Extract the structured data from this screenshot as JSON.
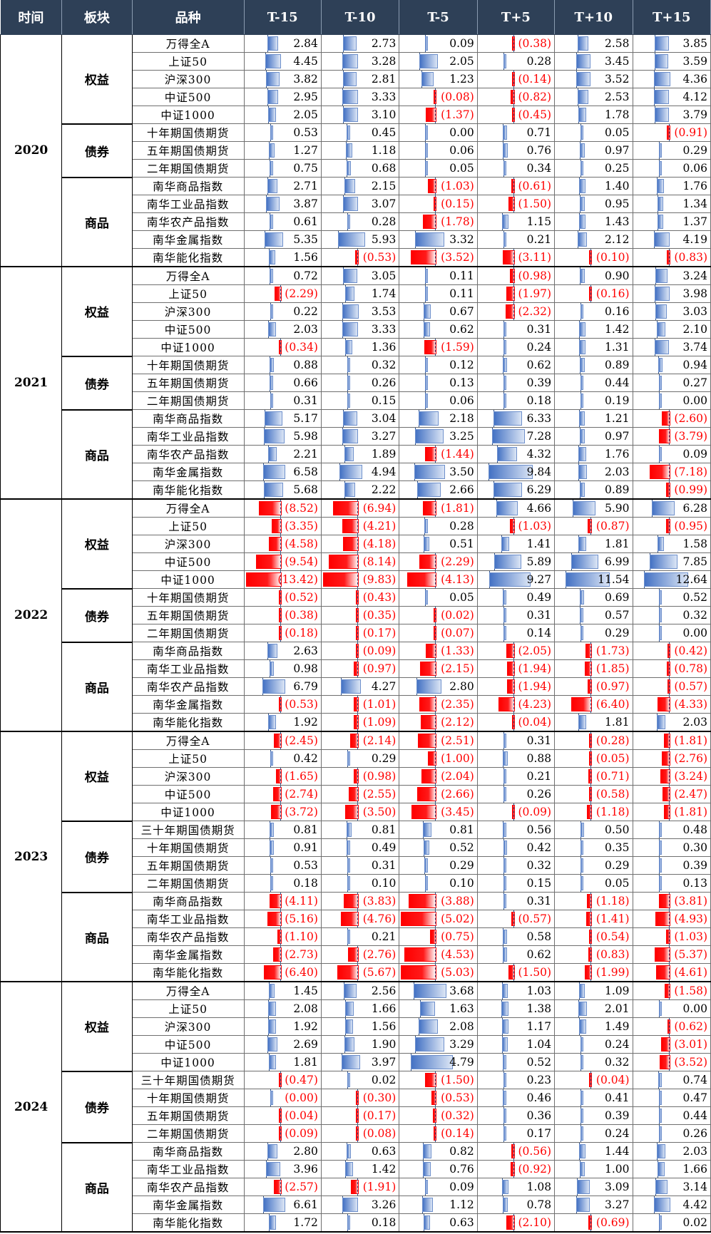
{
  "headers": [
    "时间",
    "板块",
    "品种",
    "T-15",
    "T-10",
    "T-5",
    "T+5",
    "T+10",
    "T+15"
  ],
  "years": [
    {
      "year": "2020",
      "sectors": [
        {
          "name": "权益",
          "rows": [
            {
              "name": "万得全A",
              "values": [
                "2.84",
                "2.73",
                "0.09",
                "(0.38)",
                "2.58",
                "3.85"
              ]
            },
            {
              "name": "上证50",
              "values": [
                "4.45",
                "3.28",
                "2.05",
                "0.28",
                "3.45",
                "3.59"
              ]
            },
            {
              "name": "沪深300",
              "values": [
                "3.82",
                "2.81",
                "1.23",
                "(0.14)",
                "3.52",
                "4.36"
              ]
            },
            {
              "name": "中证500",
              "values": [
                "2.95",
                "3.33",
                "(0.08)",
                "(0.82)",
                "2.53",
                "4.12"
              ]
            },
            {
              "name": "中证1000",
              "values": [
                "2.05",
                "3.10",
                "(1.37)",
                "(0.45)",
                "1.78",
                "3.79"
              ]
            }
          ]
        },
        {
          "name": "债券",
          "rows": [
            {
              "name": "十年期国债期货",
              "values": [
                "0.53",
                "0.45",
                "0.00",
                "0.71",
                "0.05",
                "(0.91)"
              ]
            },
            {
              "name": "五年期国债期货",
              "values": [
                "1.27",
                "1.18",
                "0.06",
                "0.76",
                "0.97",
                "0.29"
              ]
            },
            {
              "name": "二年期国债期货",
              "values": [
                "0.75",
                "0.68",
                "0.05",
                "0.34",
                "0.25",
                "0.06"
              ]
            }
          ]
        },
        {
          "name": "商品",
          "rows": [
            {
              "name": "南华商品指数",
              "values": [
                "2.71",
                "2.15",
                "(1.03)",
                "(0.61)",
                "1.40",
                "1.76"
              ]
            },
            {
              "name": "南华工业品指数",
              "values": [
                "3.87",
                "3.07",
                "(0.15)",
                "(1.50)",
                "0.95",
                "1.34"
              ]
            },
            {
              "name": "南华农产品指数",
              "values": [
                "0.61",
                "0.28",
                "(1.78)",
                "1.15",
                "1.43",
                "1.37"
              ]
            },
            {
              "name": "南华金属指数",
              "values": [
                "5.35",
                "5.93",
                "3.32",
                "0.21",
                "2.12",
                "4.19"
              ]
            },
            {
              "name": "南华能化指数",
              "values": [
                "1.56",
                "(0.53)",
                "(3.52)",
                "(3.11)",
                "(0.10)",
                "(0.83)"
              ]
            }
          ]
        }
      ]
    },
    {
      "year": "2021",
      "sectors": [
        {
          "name": "权益",
          "rows": [
            {
              "name": "万得全A",
              "values": [
                "0.72",
                "3.05",
                "0.11",
                "(0.98)",
                "0.90",
                "3.24"
              ]
            },
            {
              "name": "上证50",
              "values": [
                "(2.29)",
                "1.74",
                "0.11",
                "(1.97)",
                "(0.16)",
                "3.98"
              ]
            },
            {
              "name": "沪深300",
              "values": [
                "0.22",
                "3.53",
                "0.67",
                "(2.32)",
                "0.16",
                "3.03"
              ]
            },
            {
              "name": "中证500",
              "values": [
                "2.03",
                "3.33",
                "0.62",
                "0.31",
                "1.42",
                "2.10"
              ]
            },
            {
              "name": "中证1000",
              "values": [
                "(0.34)",
                "1.36",
                "(1.59)",
                "0.24",
                "1.31",
                "3.74"
              ]
            }
          ]
        },
        {
          "name": "债券",
          "rows": [
            {
              "name": "十年期国债期货",
              "values": [
                "0.88",
                "0.32",
                "0.12",
                "0.62",
                "0.89",
                "0.94"
              ]
            },
            {
              "name": "五年期国债期货",
              "values": [
                "0.66",
                "0.26",
                "0.13",
                "0.39",
                "0.44",
                "0.27"
              ]
            },
            {
              "name": "二年期国债期货",
              "values": [
                "0.31",
                "0.15",
                "0.06",
                "0.18",
                "0.19",
                "0.00"
              ]
            }
          ]
        },
        {
          "name": "商品",
          "rows": [
            {
              "name": "南华商品指数",
              "values": [
                "5.17",
                "3.04",
                "2.18",
                "6.33",
                "1.21",
                "(2.60)"
              ]
            },
            {
              "name": "南华工业品指数",
              "values": [
                "5.98",
                "3.27",
                "3.25",
                "7.28",
                "0.97",
                "(3.79)"
              ]
            },
            {
              "name": "南华农产品指数",
              "values": [
                "2.21",
                "1.89",
                "(1.44)",
                "4.32",
                "1.76",
                "0.09"
              ]
            },
            {
              "name": "南华金属指数",
              "values": [
                "6.58",
                "4.94",
                "3.50",
                "9.84",
                "2.03",
                "(7.18)"
              ]
            },
            {
              "name": "南华能化指数",
              "values": [
                "5.68",
                "2.22",
                "2.66",
                "6.29",
                "0.89",
                "(0.99)"
              ]
            }
          ]
        }
      ]
    },
    {
      "year": "2022",
      "sectors": [
        {
          "name": "权益",
          "rows": [
            {
              "name": "万得全A",
              "values": [
                "(8.52)",
                "(6.94)",
                "(1.81)",
                "4.66",
                "5.90",
                "6.28"
              ]
            },
            {
              "name": "上证50",
              "values": [
                "(3.35)",
                "(4.21)",
                "0.28",
                "(1.03)",
                "(0.87)",
                "(0.95)"
              ]
            },
            {
              "name": "沪深300",
              "values": [
                "(4.58)",
                "(4.18)",
                "0.51",
                "1.41",
                "1.81",
                "1.58"
              ]
            },
            {
              "name": "中证500",
              "values": [
                "(9.54)",
                "(8.14)",
                "(2.29)",
                "5.89",
                "6.99",
                "7.85"
              ]
            },
            {
              "name": "中证1000",
              "values": [
                "(13.42)",
                "(9.83)",
                "(4.13)",
                "9.27",
                "11.54",
                "12.64"
              ]
            }
          ]
        },
        {
          "name": "债券",
          "rows": [
            {
              "name": "十年期国债期货",
              "values": [
                "(0.52)",
                "(0.43)",
                "0.05",
                "0.49",
                "0.69",
                "0.52"
              ]
            },
            {
              "name": "五年期国债期货",
              "values": [
                "(0.38)",
                "(0.35)",
                "(0.02)",
                "0.31",
                "0.57",
                "0.32"
              ]
            },
            {
              "name": "二年期国债期货",
              "values": [
                "(0.18)",
                "(0.17)",
                "(0.07)",
                "0.14",
                "0.29",
                "0.00"
              ]
            }
          ]
        },
        {
          "name": "商品",
          "rows": [
            {
              "name": "南华商品指数",
              "values": [
                "2.63",
                "(0.09)",
                "(1.33)",
                "(2.05)",
                "(1.73)",
                "(0.42)"
              ]
            },
            {
              "name": "南华工业品指数",
              "values": [
                "0.98",
                "(0.97)",
                "(2.15)",
                "(1.94)",
                "(1.85)",
                "(0.78)"
              ]
            },
            {
              "name": "南华农产品指数",
              "values": [
                "6.79",
                "4.27",
                "2.80",
                "(1.94)",
                "(0.97)",
                "(0.57)"
              ]
            },
            {
              "name": "南华金属指数",
              "values": [
                "(0.53)",
                "(1.01)",
                "(2.35)",
                "(4.23)",
                "(6.40)",
                "(4.33)"
              ]
            },
            {
              "name": "南华能化指数",
              "values": [
                "1.92",
                "(1.09)",
                "(2.12)",
                "(0.04)",
                "1.81",
                "2.03"
              ]
            }
          ]
        }
      ]
    },
    {
      "year": "2023",
      "sectors": [
        {
          "name": "权益",
          "rows": [
            {
              "name": "万得全A",
              "values": [
                "(2.45)",
                "(2.14)",
                "(2.51)",
                "0.31",
                "(0.28)",
                "(1.81)"
              ]
            },
            {
              "name": "上证50",
              "values": [
                "0.42",
                "0.29",
                "(1.00)",
                "0.88",
                "(0.05)",
                "(2.76)"
              ]
            },
            {
              "name": "沪深300",
              "values": [
                "(1.65)",
                "(0.98)",
                "(2.04)",
                "0.21",
                "(0.71)",
                "(3.24)"
              ]
            },
            {
              "name": "中证500",
              "values": [
                "(2.74)",
                "(2.55)",
                "(2.66)",
                "0.26",
                "(0.58)",
                "(2.47)"
              ]
            },
            {
              "name": "中证1000",
              "values": [
                "(3.72)",
                "(3.50)",
                "(3.45)",
                "(0.09)",
                "(1.18)",
                "(1.81)"
              ]
            }
          ]
        },
        {
          "name": "债券",
          "rows": [
            {
              "name": "三十年期国债期货",
              "values": [
                "0.81",
                "0.81",
                "0.81",
                "0.56",
                "0.50",
                "0.48"
              ]
            },
            {
              "name": "十年期国债期货",
              "values": [
                "0.91",
                "0.49",
                "0.52",
                "0.42",
                "0.35",
                "0.30"
              ]
            },
            {
              "name": "五年期国债期货",
              "values": [
                "0.53",
                "0.31",
                "0.29",
                "0.32",
                "0.29",
                "0.39"
              ]
            },
            {
              "name": "二年期国债期货",
              "values": [
                "0.18",
                "0.10",
                "0.10",
                "0.15",
                "0.05",
                "0.13"
              ]
            }
          ]
        },
        {
          "name": "商品",
          "rows": [
            {
              "name": "南华商品指数",
              "values": [
                "(4.11)",
                "(3.83)",
                "(3.88)",
                "0.31",
                "(1.18)",
                "(3.81)"
              ]
            },
            {
              "name": "南华工业品指数",
              "values": [
                "(5.16)",
                "(4.76)",
                "(5.02)",
                "(0.57)",
                "(1.41)",
                "(4.93)"
              ]
            },
            {
              "name": "南华农产品指数",
              "values": [
                "(1.10)",
                "0.21",
                "(0.75)",
                "0.58",
                "(0.54)",
                "(1.03)"
              ]
            },
            {
              "name": "南华金属指数",
              "values": [
                "(2.73)",
                "(2.76)",
                "(4.53)",
                "0.62",
                "(0.83)",
                "(5.37)"
              ]
            },
            {
              "name": "南华能化指数",
              "values": [
                "(6.40)",
                "(5.67)",
                "(5.03)",
                "(1.50)",
                "(1.99)",
                "(4.61)"
              ]
            }
          ]
        }
      ]
    },
    {
      "year": "2024",
      "sectors": [
        {
          "name": "权益",
          "rows": [
            {
              "name": "万得全A",
              "values": [
                "1.45",
                "2.56",
                "3.68",
                "1.03",
                "1.09",
                "(1.58)"
              ]
            },
            {
              "name": "上证50",
              "values": [
                "2.08",
                "1.66",
                "1.63",
                "1.38",
                "2.01",
                "0.00"
              ]
            },
            {
              "name": "沪深300",
              "values": [
                "1.92",
                "1.56",
                "2.08",
                "1.17",
                "1.49",
                "(0.62)"
              ]
            },
            {
              "name": "中证500",
              "values": [
                "2.69",
                "1.90",
                "3.29",
                "1.04",
                "0.24",
                "(3.01)"
              ]
            },
            {
              "name": "中证1000",
              "values": [
                "1.81",
                "3.97",
                "4.79",
                "0.52",
                "0.32",
                "(3.52)"
              ]
            }
          ]
        },
        {
          "name": "债券",
          "rows": [
            {
              "name": "三十年期国债期货",
              "values": [
                "(0.47)",
                "0.02",
                "(1.50)",
                "0.23",
                "(0.04)",
                "0.74"
              ]
            },
            {
              "name": "十年期国债期货",
              "values": [
                "(0.00)",
                "(0.30)",
                "(0.53)",
                "0.46",
                "0.41",
                "0.47"
              ]
            },
            {
              "name": "五年期国债期货",
              "values": [
                "(0.04)",
                "(0.17)",
                "(0.32)",
                "0.36",
                "0.39",
                "0.44"
              ]
            },
            {
              "name": "二年期国债期货",
              "values": [
                "(0.09)",
                "(0.08)",
                "(0.14)",
                "0.17",
                "0.24",
                "0.26"
              ]
            }
          ]
        },
        {
          "name": "商品",
          "rows": [
            {
              "name": "南华商品指数",
              "values": [
                "2.80",
                "0.63",
                "0.82",
                "(0.56)",
                "1.44",
                "2.03"
              ]
            },
            {
              "name": "南华工业品指数",
              "values": [
                "3.96",
                "1.42",
                "0.76",
                "(0.92)",
                "1.00",
                "1.66"
              ]
            },
            {
              "name": "南华农产品指数",
              "values": [
                "(2.57)",
                "(1.91)",
                "0.09",
                "1.08",
                "3.09",
                "3.14"
              ]
            },
            {
              "name": "南华金属指数",
              "values": [
                "6.61",
                "3.26",
                "1.12",
                "0.78",
                "3.27",
                "4.42"
              ]
            },
            {
              "name": "南华能化指数",
              "values": [
                "1.72",
                "0.18",
                "0.63",
                "(2.10)",
                "(0.69)",
                "0.02"
              ]
            }
          ]
        }
      ]
    }
  ],
  "colors": {
    "header_bg": "#2e4057",
    "header_text": "#ffffff",
    "positive_bar": "#4472c4",
    "negative_bar": "#ff0000",
    "negative_text": "#ff0000"
  }
}
